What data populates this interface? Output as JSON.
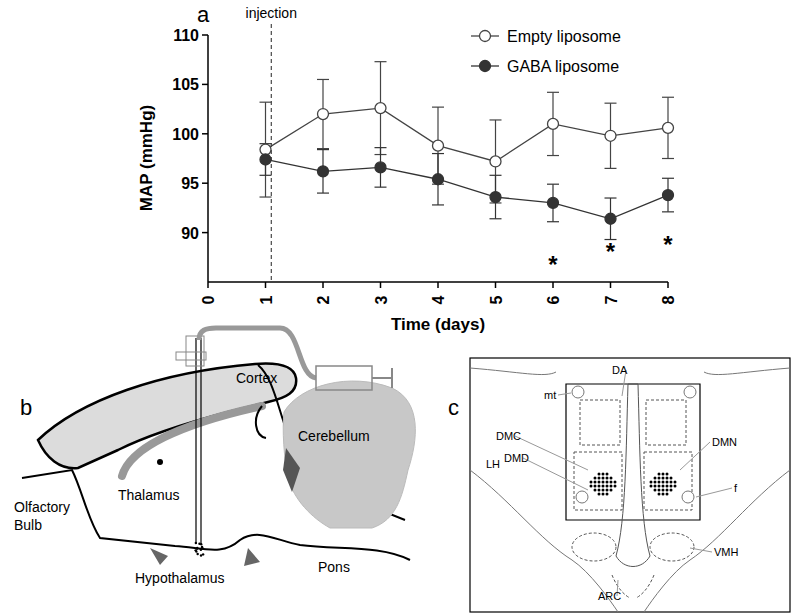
{
  "chart_data": {
    "type": "line",
    "x_label": "Time (days)",
    "y_label": "MAP (mmHg)",
    "x": [
      1,
      2,
      3,
      4,
      5,
      6,
      7,
      8
    ],
    "xlim": [
      0,
      8
    ],
    "xticks": [
      0,
      1,
      2,
      3,
      4,
      5,
      6,
      7,
      8
    ],
    "ylim": [
      85,
      110
    ],
    "yticks": [
      90,
      95,
      100,
      105,
      110
    ],
    "legend": "top-right",
    "series": [
      {
        "name": "Empty liposome",
        "color": "#444444",
        "marker": "open-circle",
        "values": [
          98.4,
          102.0,
          102.6,
          98.8,
          97.2,
          101.0,
          99.8,
          100.6
        ],
        "errors": [
          4.8,
          3.5,
          4.7,
          3.9,
          4.2,
          3.2,
          3.3,
          3.1
        ]
      },
      {
        "name": "GABA liposome",
        "color": "#333333",
        "marker": "circle",
        "values": [
          97.4,
          96.2,
          96.6,
          95.4,
          93.6,
          93.0,
          91.4,
          93.8
        ],
        "errors": [
          1.6,
          2.2,
          2.0,
          2.6,
          2.2,
          1.9,
          2.1,
          1.7
        ]
      }
    ],
    "annotations": [
      {
        "text": "injection",
        "x": 1.1,
        "line_style": "dashed"
      },
      {
        "text": "*",
        "x": 6,
        "y": 86.8
      },
      {
        "text": "*",
        "x": 7,
        "y": 88.1
      },
      {
        "text": "*",
        "x": 8,
        "y": 88.8
      }
    ]
  },
  "panel_labels": [
    "a",
    "b",
    "c"
  ],
  "diagram_b": {
    "labels": [
      "Cortex",
      "Thalamus",
      "Olfactory Bulb",
      "Hypothalamus",
      "Cerebellum",
      "Pons"
    ]
  },
  "diagram_c": {
    "labels": [
      "mt",
      "DA",
      "LH",
      "DMC",
      "DMD",
      "DMN",
      "f",
      "ARC",
      "VMH"
    ]
  }
}
